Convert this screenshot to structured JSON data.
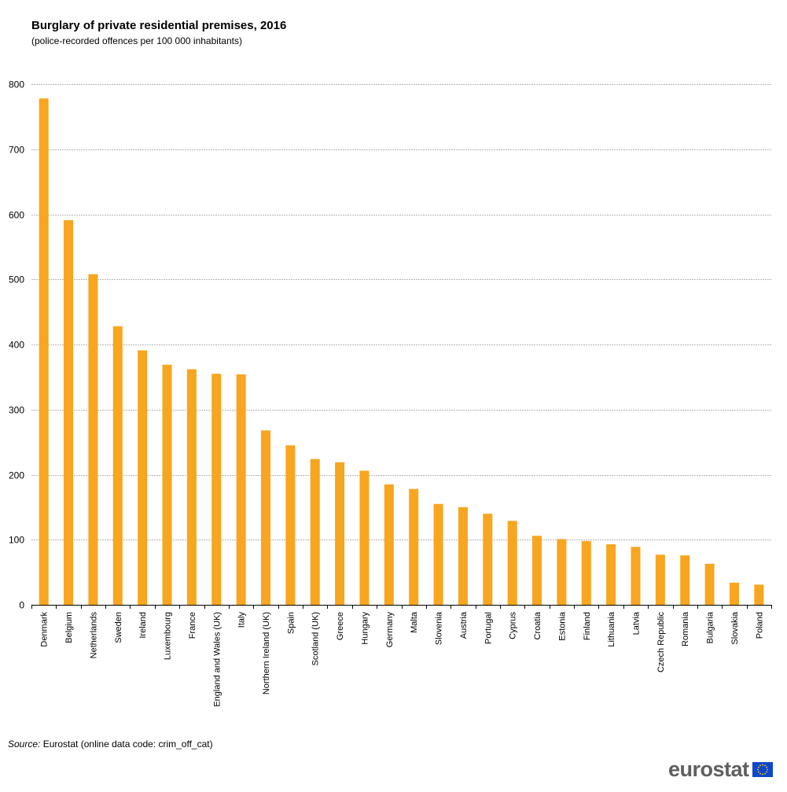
{
  "title": "Burglary of private residential premises, 2016",
  "subtitle": "(police-recorded  offences  per  100 000  inhabitants)",
  "source_label": "Source:",
  "source_text": "Eurostat (online data code: crim_off_cat)",
  "logo_text": "eurostat",
  "colors": {
    "bar": "#f8a51f",
    "grid": "#b5b5b5",
    "axis": "#000000",
    "flag": "#0e47cb",
    "stars": "#ffd200"
  },
  "chart_data": {
    "type": "bar",
    "title": "Burglary of private residential premises, 2016",
    "subtitle": "(police-recorded  offences  per  100 000  inhabitants)",
    "xlabel": "",
    "ylabel": "",
    "ylim": [
      0,
      800
    ],
    "yticks": [
      0,
      100,
      200,
      300,
      400,
      500,
      600,
      700,
      800
    ],
    "grid": true,
    "categories": [
      "Denmark",
      "Belgium",
      "Netherlands",
      "Sweden",
      "Ireland",
      "Luxembourg",
      "France",
      "England and Wales (UK)",
      "Italy",
      "Northern Ireland (UK)",
      "Spain",
      "Scotland (UK)",
      "Greece",
      "Hungary",
      "Germany",
      "Malta",
      "Slovenia",
      "Austria",
      "Portugal",
      "Cyprus",
      "Croatia",
      "Estonia",
      "Finland",
      "Lithuania",
      "Latvia",
      "Czech Republic",
      "Romania",
      "Bulgaria",
      "Slovakia",
      "Poland"
    ],
    "values": [
      778,
      591,
      508,
      428,
      391,
      369,
      362,
      355,
      354,
      268,
      245,
      224,
      219,
      206,
      185,
      178,
      155,
      150,
      140,
      129,
      106,
      101,
      98,
      93,
      89,
      77,
      76,
      63,
      34,
      31
    ]
  }
}
